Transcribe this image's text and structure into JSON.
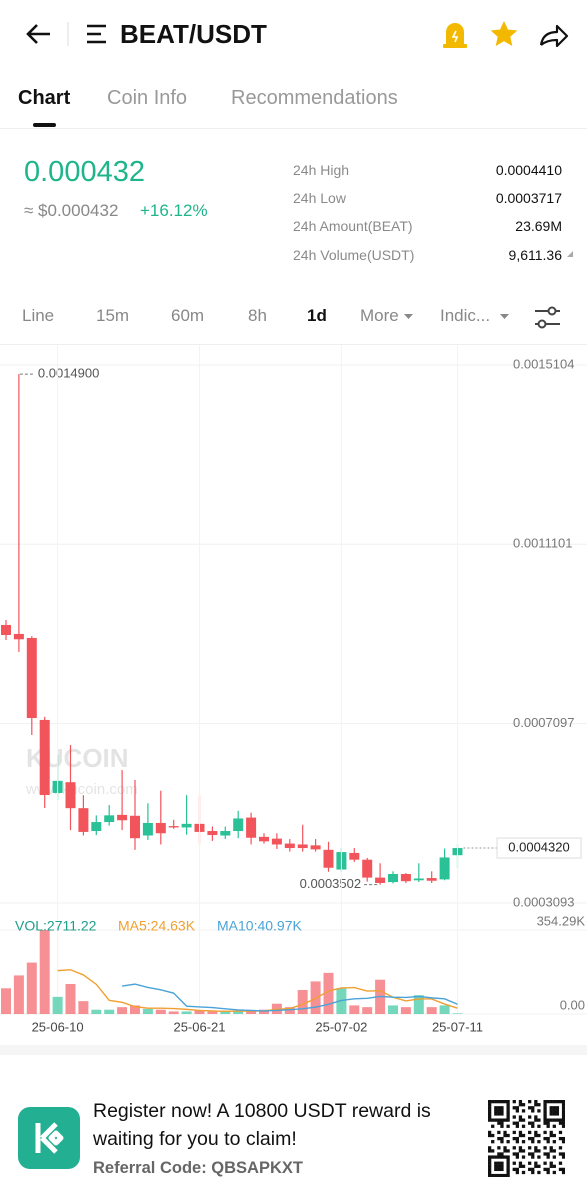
{
  "header": {
    "title": "BEAT/USDT"
  },
  "tabs": [
    "Chart",
    "Coin Info",
    "Recommendations"
  ],
  "ticker": {
    "price": "0.000432",
    "fiat": "≈ $0.000432",
    "change": "+16.12%",
    "stats": [
      [
        "24h High",
        "0.0004410"
      ],
      [
        "24h Low",
        "0.0003717"
      ],
      [
        "24h Amount(BEAT)",
        "23.69M"
      ],
      [
        "24h Volume(USDT)",
        "9,611.36"
      ]
    ]
  },
  "intervals": [
    "Line",
    "15m",
    "60m",
    "8h",
    "1d",
    "More",
    "Indic..."
  ],
  "watermark": {
    "brand": "KUCOIN",
    "url": "www.kucoin.com"
  },
  "chart_data": [
    {
      "type": "candlestick",
      "up_color": "#2bc197",
      "down_color": "#f2545b",
      "ylim": [
        0.0003093,
        0.0015104
      ],
      "yticks": [
        0.0015104,
        0.0011101,
        0.0007097,
        0.0003093
      ],
      "grid": true,
      "open": [
        0.00093,
        0.00091,
        0.000901,
        0.000718,
        0.000555,
        0.000579,
        0.000521,
        0.00047,
        0.00049,
        0.000506,
        0.000504,
        0.00046,
        0.000488,
        0.000481,
        0.000478,
        0.000486,
        0.00047,
        0.00046,
        0.00047,
        0.0005,
        0.000457,
        0.000453,
        0.000442,
        0.00044,
        0.000438,
        0.000428,
        0.000384,
        0.000421,
        0.000406,
        0.000366,
        0.000356,
        0.000374,
        0.00036,
        0.000365,
        0.000362,
        0.000416
      ],
      "high": [
        0.0009411,
        0.00149,
        0.000905,
        0.000725,
        0.0006397,
        0.000662,
        0.00055,
        0.000505,
        0.000528,
        0.000606,
        0.000584,
        0.000532,
        0.00056,
        0.000495,
        0.00055,
        0.00055,
        0.00048,
        0.00048,
        0.000515,
        0.000511,
        0.000465,
        0.000465,
        0.000452,
        0.000484,
        0.000452,
        0.000446,
        0.000432,
        0.000432,
        0.00041,
        0.000398,
        0.00038,
        0.000376,
        0.000398,
        0.00038,
        0.000431,
        0.000441
      ],
      "low": [
        0.0008965,
        0.00087,
        0.0006844,
        0.0005214,
        0.0005393,
        0.000472,
        0.00046,
        0.000461,
        0.000482,
        0.000472,
        0.000428,
        0.00045,
        0.00044,
        0.000475,
        0.000462,
        0.00044,
        0.000448,
        0.000452,
        0.000454,
        0.00044,
        0.000442,
        0.00043,
        0.000424,
        0.000424,
        0.000424,
        0.000379,
        0.000379,
        0.000401,
        0.000357,
        0.0003502,
        0.000353,
        0.000354,
        0.000356,
        0.000354,
        0.00036,
        0.000387
      ],
      "close": [
        0.0009076,
        0.000898,
        0.0007223,
        0.0005504,
        0.000582,
        0.000521,
        0.000468,
        0.00049,
        0.000505,
        0.000494,
        0.000454,
        0.000488,
        0.000465,
        0.000478,
        0.000486,
        0.000468,
        0.000461,
        0.00047,
        0.000498,
        0.000455,
        0.000447,
        0.00044,
        0.000432,
        0.000432,
        0.000429,
        0.000388,
        0.000423,
        0.000406,
        0.000366,
        0.000354,
        0.000374,
        0.000358,
        0.000364,
        0.000359,
        0.000411,
        0.000432
      ],
      "annotations": {
        "high": {
          "value": 0.00149,
          "label": "0.0014900"
        },
        "low": {
          "value": 0.0003502,
          "label": "0.0003502"
        },
        "last": {
          "value": 0.000432,
          "label": "0.0004320"
        }
      }
    },
    {
      "type": "bar",
      "categories": [
        null,
        null,
        null,
        null,
        "25-06-10",
        null,
        null,
        null,
        null,
        null,
        null,
        null,
        null,
        null,
        null,
        "25-06-21",
        null,
        null,
        null,
        null,
        null,
        null,
        null,
        null,
        null,
        null,
        "25-07-02",
        null,
        null,
        null,
        null,
        null,
        null,
        null,
        null,
        "25-07-11"
      ],
      "ylim": [
        0,
        354290
      ],
      "yticks": [
        {
          "value": 354290,
          "label": "354.29K"
        },
        {
          "value": 0,
          "label": "0.00"
        }
      ],
      "legend": [
        "VOL:2711.22",
        "MA5:24.63K",
        "MA10:40.97K"
      ],
      "series": [
        {
          "color": "#1d9e8a",
          "values": [
            108450,
            162700,
            216900,
            354290,
            72300,
            126500,
            54200,
            18100,
            18100,
            28900,
            36200,
            21700,
            18100,
            10800,
            10800,
            14500,
            10800,
            10800,
            14500,
            10800,
            18100,
            43400,
            28900,
            101200,
            137400,
            173500,
            108500,
            36200,
            28900,
            144600,
            36200,
            28900,
            79500,
            28900,
            36200,
            2711.22
          ]
        },
        {
          "color": "#f0a030",
          "values": [
            null,
            null,
            null,
            null,
            182900,
            186500,
            164800,
            125100,
            57800,
            49200,
            31100,
            24600,
            24600,
            23100,
            19500,
            15200,
            13000,
            11500,
            12300,
            12300,
            13000,
            19500,
            23100,
            40500,
            65800,
            96900,
            109900,
            111400,
            96900,
            98300,
            70900,
            55000,
            63600,
            63600,
            41900,
            24630
          ]
        },
        {
          "color": "#4aa3d8",
          "values": [
            null,
            null,
            null,
            null,
            null,
            null,
            null,
            null,
            null,
            118000,
            126000,
            112000,
            102000,
            88000,
            33000,
            30000,
            27000,
            22000,
            17000,
            15000,
            13000,
            15000,
            18000,
            22000,
            29000,
            41000,
            57000,
            64000,
            66000,
            74000,
            71000,
            70000,
            74000,
            68000,
            64000,
            40970
          ]
        }
      ]
    }
  ],
  "banner": {
    "headline": "Register now! A 10800 USDT reward is waiting for you to claim!",
    "referral": "Referral Code: QBSAPKXT"
  }
}
